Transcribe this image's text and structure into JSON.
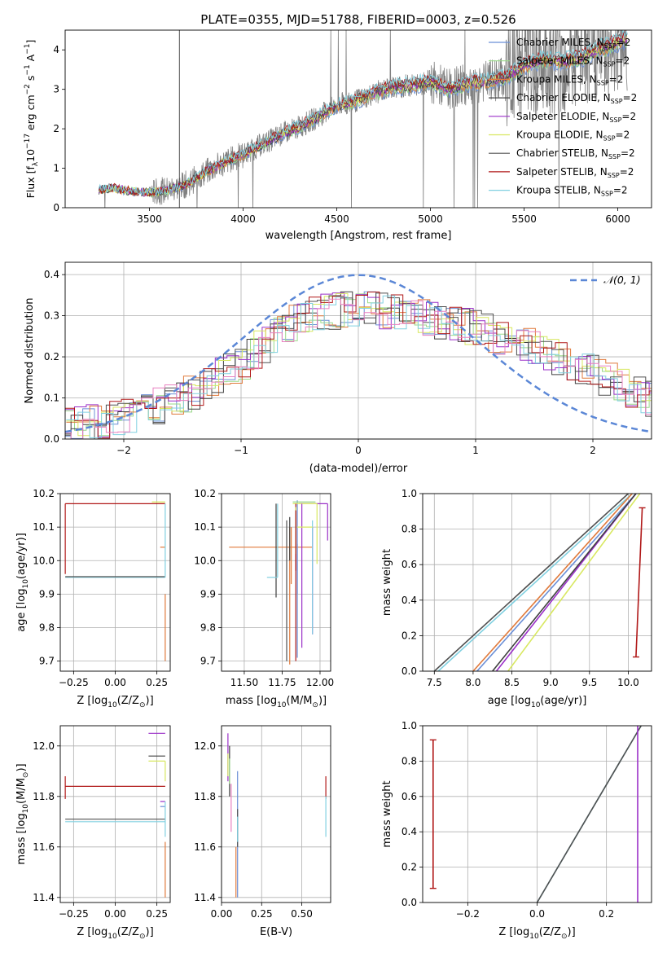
{
  "figure_title": "PLATE=0355, MJD=51788, FIBERID=0003, z=0.526",
  "model_names": [
    "Chabrier MILES",
    "Salpeter MILES",
    "Kroupa MILES",
    "Chabrier ELODIE",
    "Salpeter ELODIE",
    "Kroupa ELODIE",
    "Chabrier STELIB",
    "Salpeter STELIB",
    "Kroupa STELIB"
  ],
  "legend_suffix": ", N",
  "legend_sub": "SSP",
  "legend_tail": "=2",
  "colors": {
    "data_gray": "#808080",
    "models": [
      "#6b8fd6",
      "#9ad98a",
      "#e07a3c",
      "#404040",
      "#9b30c8",
      "#d8e860",
      "#505050",
      "#b01818",
      "#80d0e0"
    ],
    "normal_curve": "#5b87d6",
    "grid": "#b0b0b0"
  },
  "chart_data": [
    {
      "id": "spectrum",
      "type": "line",
      "title": "PLATE=0355, MJD=51788, FIBERID=0003, z=0.526",
      "xlabel": "wavelength [Angstrom, rest frame]",
      "ylabel_pre": "Flux [f",
      "ylabel_sub": "λ",
      "ylabel_post": "10",
      "ylabel_exp": "−17",
      "ylabel_tail": " erg cm",
      "ylabel_exp2": "−2",
      "ylabel_tail2": " s",
      "ylabel_exp3": "−1",
      "ylabel_tail3": " A",
      "ylabel_exp4": "−1",
      "ylabel_end": "]",
      "xlim": [
        3050,
        6180
      ],
      "ylim": [
        0,
        4.5
      ],
      "xticks": [
        3500,
        4000,
        4500,
        5000,
        5500,
        6000
      ],
      "yticks": [
        0,
        1,
        2,
        3,
        4
      ],
      "grid": false,
      "legend": "top-right",
      "continuum": {
        "x": [
          3230,
          3300,
          3400,
          3500,
          3600,
          3700,
          3800,
          3900,
          4000,
          4100,
          4200,
          4300,
          4400,
          4500,
          4600,
          4700,
          4800,
          4900,
          5000,
          5100,
          5200,
          5300,
          5400,
          5500,
          5600,
          5700,
          5800,
          5900,
          6000,
          6050
        ],
        "y": [
          0.45,
          0.5,
          0.42,
          0.38,
          0.45,
          0.6,
          0.9,
          1.15,
          1.35,
          1.6,
          1.85,
          2.05,
          2.3,
          2.6,
          2.7,
          2.9,
          3.05,
          3.1,
          3.2,
          3.0,
          3.15,
          3.2,
          3.3,
          3.6,
          3.75,
          3.7,
          3.8,
          4.0,
          4.2,
          4.3
        ]
      }
    },
    {
      "id": "residuals",
      "type": "line",
      "xlabel": "(data-model)/error",
      "ylabel": "Normed distribution",
      "xlim": [
        -2.5,
        2.5
      ],
      "ylim": [
        0,
        0.43
      ],
      "xticks": [
        -2,
        -1,
        0,
        1,
        2
      ],
      "yticks": [
        0.0,
        0.1,
        0.2,
        0.3,
        0.4
      ],
      "grid": true,
      "legend": "top-right",
      "normal_label": "𝒩(0, 1)",
      "envelope": {
        "x": [
          -2.5,
          -2.0,
          -1.5,
          -1.0,
          -0.5,
          0.0,
          0.5,
          1.0,
          1.5,
          2.0,
          2.5
        ],
        "y": [
          0.03,
          0.05,
          0.1,
          0.18,
          0.3,
          0.32,
          0.3,
          0.27,
          0.22,
          0.16,
          0.1
        ]
      }
    },
    {
      "id": "age-vs-Z",
      "type": "scatter",
      "xlabel_pre": "Z [log",
      "xlabel_sub": "10",
      "xlabel_post": "(Z/Z",
      "xlabel_sub2": "⊙",
      "xlabel_end": ")]",
      "ylabel_pre": "age  [log",
      "ylabel_sub": "10",
      "ylabel_post": "(age/yr)]",
      "xlim": [
        -0.33,
        0.33
      ],
      "ylim": [
        9.67,
        10.2
      ],
      "xticks": [
        -0.25,
        0.0,
        0.25
      ],
      "xticklabels": [
        "−0.25",
        "0.00",
        "0.25"
      ],
      "yticks": [
        9.7,
        9.8,
        9.9,
        10.0,
        10.1,
        10.2
      ],
      "grid": true,
      "segments": [
        {
          "model": 7,
          "x1": -0.3,
          "x2": 0.3,
          "y1": 10.17,
          "y2": 10.17
        },
        {
          "model": 7,
          "x1": -0.3,
          "x2": -0.3,
          "y1": 9.96,
          "y2": 10.17
        },
        {
          "model": 8,
          "x1": -0.3,
          "x2": 0.3,
          "y1": 9.95,
          "y2": 9.95
        },
        {
          "model": 6,
          "x1": -0.3,
          "x2": 0.3,
          "y1": 9.952,
          "y2": 9.952
        },
        {
          "model": 5,
          "x1": 0.22,
          "x2": 0.3,
          "y1": 10.175,
          "y2": 10.175
        },
        {
          "model": 2,
          "x1": 0.3,
          "x2": 0.3,
          "y1": 9.7,
          "y2": 9.9
        },
        {
          "model": 2,
          "x1": 0.27,
          "x2": 0.3,
          "y1": 10.04,
          "y2": 10.04
        },
        {
          "model": 8,
          "x1": 0.3,
          "x2": 0.3,
          "y1": 9.95,
          "y2": 10.17
        }
      ]
    },
    {
      "id": "age-vs-mass",
      "type": "scatter",
      "xlabel_pre": "mass [log",
      "xlabel_sub": "10",
      "xlabel_post": "(M/M",
      "xlabel_sub2": "⊙",
      "xlabel_end": ")]",
      "xlim": [
        11.35,
        12.07
      ],
      "ylim": [
        9.67,
        10.2
      ],
      "xticks": [
        11.5,
        11.75,
        12.0
      ],
      "xticklabels": [
        "11.50",
        "11.75",
        "12.00"
      ],
      "yticks": [
        9.7,
        9.8,
        9.9,
        10.0,
        10.1,
        10.2
      ],
      "grid": true,
      "segments": [
        {
          "model": 2,
          "x1": 11.4,
          "x2": 11.95,
          "y1": 10.04,
          "y2": 10.04
        },
        {
          "model": 2,
          "x1": 11.8,
          "x2": 11.8,
          "y1": 9.69,
          "y2": 10.1
        },
        {
          "model": 0,
          "x1": 11.85,
          "x2": 11.85,
          "y1": 9.71,
          "y2": 10.18
        },
        {
          "model": 3,
          "x1": 11.71,
          "x2": 11.71,
          "y1": 9.89,
          "y2": 10.17
        },
        {
          "model": 8,
          "x1": 11.65,
          "x2": 11.72,
          "y1": 9.95,
          "y2": 9.95
        },
        {
          "model": 8,
          "x1": 11.72,
          "x2": 11.72,
          "y1": 9.95,
          "y2": 10.17
        },
        {
          "model": 4,
          "x1": 11.86,
          "x2": 12.05,
          "y1": 10.17,
          "y2": 10.17
        },
        {
          "model": 4,
          "x1": 12.05,
          "x2": 12.05,
          "y1": 10.06,
          "y2": 10.17
        },
        {
          "model": 5,
          "x1": 11.82,
          "x2": 11.98,
          "y1": 10.17,
          "y2": 10.17
        },
        {
          "model": 5,
          "x1": 11.98,
          "x2": 11.98,
          "y1": 9.99,
          "y2": 10.17
        },
        {
          "model": 1,
          "x1": 11.82,
          "x2": 11.97,
          "y1": 10.175,
          "y2": 10.175
        },
        {
          "model": 6,
          "x1": 11.78,
          "x2": 11.78,
          "y1": 9.7,
          "y2": 10.12
        },
        {
          "model": 7,
          "x1": 11.84,
          "x2": 11.84,
          "y1": 9.7,
          "y2": 10.17
        },
        {
          "model": 4,
          "x1": 11.88,
          "x2": 11.88,
          "y1": 9.74,
          "y2": 10.17
        },
        {
          "model": 5,
          "x1": 11.84,
          "x2": 11.84,
          "y1": 10.02,
          "y2": 10.16
        },
        {
          "model": 0,
          "x1": 11.85,
          "x2": 11.85,
          "y1": 9.9,
          "y2": 10.05
        },
        {
          "model": 7,
          "x1": 11.84,
          "x2": 11.84,
          "y1": 9.97,
          "y2": 10.15
        },
        {
          "model": 2,
          "x1": 11.81,
          "x2": 11.81,
          "y1": 9.93,
          "y2": 10.1
        },
        {
          "model": 3,
          "x1": 11.8,
          "x2": 11.8,
          "y1": 10.0,
          "y2": 10.13
        },
        {
          "model": 4,
          "x1": 11.95,
          "x2": 11.95,
          "y1": 9.78,
          "y2": 10.1
        },
        {
          "model": 8,
          "x1": 11.95,
          "x2": 11.95,
          "y1": 9.78,
          "y2": 10.12
        },
        {
          "model": 5,
          "x1": 11.85,
          "x2": 11.95,
          "y1": 10.1,
          "y2": 10.1
        }
      ]
    },
    {
      "id": "mass-weight-vs-age",
      "type": "line",
      "xlabel_pre": "age  [log",
      "xlabel_sub": "10",
      "xlabel_post": "(age/yr)]",
      "ylabel": "mass weight",
      "xlim": [
        7.35,
        10.3
      ],
      "ylim": [
        0,
        1.0
      ],
      "xticks": [
        7.5,
        8.0,
        8.5,
        9.0,
        9.5,
        10.0
      ],
      "xticklabels": [
        "7.5",
        "8.0",
        "8.5",
        "9.0",
        "9.5",
        "10.0"
      ],
      "yticks": [
        0.0,
        0.2,
        0.4,
        0.6,
        0.8,
        1.0
      ],
      "grid": true,
      "series": [
        {
          "model": 6,
          "x": [
            7.5,
            10.0
          ],
          "y": [
            0.0,
            1.0
          ]
        },
        {
          "model": 8,
          "x": [
            7.55,
            10.05
          ],
          "y": [
            0.0,
            1.0
          ]
        },
        {
          "model": 2,
          "x": [
            8.0,
            10.05
          ],
          "y": [
            0.0,
            1.0
          ]
        },
        {
          "model": 0,
          "x": [
            8.05,
            10.1
          ],
          "y": [
            0.0,
            1.0
          ]
        },
        {
          "model": 4,
          "x": [
            8.3,
            10.1
          ],
          "y": [
            0.0,
            1.0
          ]
        },
        {
          "model": 5,
          "x": [
            8.45,
            10.15
          ],
          "y": [
            0.0,
            1.0
          ]
        },
        {
          "model": 3,
          "x": [
            8.25,
            10.1
          ],
          "y": [
            0.0,
            1.0
          ]
        },
        {
          "model": 7,
          "x": [
            10.1,
            10.18
          ],
          "y": [
            0.08,
            0.92
          ]
        }
      ]
    },
    {
      "id": "mass-vs-Z",
      "type": "scatter",
      "xlabel_pre": "Z [log",
      "xlabel_sub": "10",
      "xlabel_post": "(Z/Z",
      "xlabel_sub2": "⊙",
      "xlabel_end": ")]",
      "ylabel_pre": "mass [log",
      "ylabel_sub": "10",
      "ylabel_post": "(M/M",
      "ylabel_sub2": "⊙",
      "ylabel_end": ")]",
      "xlim": [
        -0.33,
        0.33
      ],
      "ylim": [
        11.38,
        12.08
      ],
      "xticks": [
        -0.25,
        0.0,
        0.25
      ],
      "xticklabels": [
        "−0.25",
        "0.00",
        "0.25"
      ],
      "yticks": [
        11.4,
        11.6,
        11.8,
        12.0
      ],
      "grid": true,
      "segments": [
        {
          "model": 7,
          "x1": -0.3,
          "x2": 0.3,
          "y1": 11.84,
          "y2": 11.84
        },
        {
          "model": 7,
          "x1": -0.3,
          "x2": -0.3,
          "y1": 11.79,
          "y2": 11.88
        },
        {
          "model": 6,
          "x1": -0.3,
          "x2": 0.3,
          "y1": 11.71,
          "y2": 11.71
        },
        {
          "model": 8,
          "x1": -0.3,
          "x2": 0.3,
          "y1": 11.7,
          "y2": 11.7
        },
        {
          "model": 4,
          "x1": 0.2,
          "x2": 0.3,
          "y1": 12.05,
          "y2": 12.05
        },
        {
          "model": 3,
          "x1": 0.2,
          "x2": 0.3,
          "y1": 11.96,
          "y2": 11.96
        },
        {
          "model": 5,
          "x1": 0.2,
          "x2": 0.3,
          "y1": 11.94,
          "y2": 11.94
        },
        {
          "model": 2,
          "x1": 0.3,
          "x2": 0.3,
          "y1": 11.4,
          "y2": 11.62
        },
        {
          "model": 0,
          "x1": 0.27,
          "x2": 0.3,
          "y1": 11.76,
          "y2": 11.76
        },
        {
          "model": 4,
          "x1": 0.27,
          "x2": 0.3,
          "y1": 11.78,
          "y2": 11.78
        },
        {
          "model": 8,
          "x1": 0.3,
          "x2": 0.3,
          "y1": 11.64,
          "y2": 11.78
        },
        {
          "model": 5,
          "x1": 0.3,
          "x2": 0.3,
          "y1": 11.86,
          "y2": 11.94
        }
      ]
    },
    {
      "id": "mass-vs-EBV",
      "type": "scatter",
      "xlabel": "E(B-V)",
      "xlim": [
        0.0,
        0.68
      ],
      "ylim": [
        11.38,
        12.08
      ],
      "xticks": [
        0.0,
        0.25,
        0.5
      ],
      "xticklabels": [
        "0.00",
        "0.25",
        "0.50"
      ],
      "yticks": [
        11.4,
        11.6,
        11.8,
        12.0
      ],
      "grid": true,
      "segments": [
        {
          "model": 4,
          "x1": 0.04,
          "x2": 0.04,
          "y1": 11.86,
          "y2": 12.05
        },
        {
          "model": 5,
          "x1": 0.04,
          "x2": 0.04,
          "y1": 11.88,
          "y2": 11.97
        },
        {
          "model": 3,
          "x1": 0.05,
          "x2": 0.05,
          "y1": 11.8,
          "y2": 12.0
        },
        {
          "model": 1,
          "x1": 0.05,
          "x2": 0.05,
          "y1": 11.85,
          "y2": 11.95
        },
        {
          "model": 9,
          "x1": 0.06,
          "x2": 0.06,
          "y1": 11.66,
          "y2": 11.85
        },
        {
          "model": 0,
          "x1": 0.1,
          "x2": 0.1,
          "y1": 11.4,
          "y2": 11.9
        },
        {
          "model": 2,
          "x1": 0.09,
          "x2": 0.09,
          "y1": 11.4,
          "y2": 11.6
        },
        {
          "model": 6,
          "x1": 0.1,
          "x2": 0.1,
          "y1": 11.6,
          "y2": 11.75
        },
        {
          "model": 8,
          "x1": 0.1,
          "x2": 0.1,
          "y1": 11.62,
          "y2": 11.72
        },
        {
          "model": 7,
          "x1": 0.65,
          "x2": 0.65,
          "y1": 11.79,
          "y2": 11.88
        },
        {
          "model": 8,
          "x1": 0.65,
          "x2": 0.65,
          "y1": 11.64,
          "y2": 11.8
        }
      ]
    },
    {
      "id": "mass-weight-vs-Z",
      "type": "line",
      "xlabel_pre": "Z [log",
      "xlabel_sub": "10",
      "xlabel_post": "(Z/Z",
      "xlabel_sub2": "⊙",
      "xlabel_end": ")]",
      "ylabel": "mass weight",
      "xlim": [
        -0.33,
        0.33
      ],
      "ylim": [
        0,
        1.0
      ],
      "xticks": [
        -0.2,
        0.0,
        0.2
      ],
      "xticklabels": [
        "−0.2",
        "0.0",
        "0.2"
      ],
      "yticks": [
        0.0,
        0.2,
        0.4,
        0.6,
        0.8,
        1.0
      ],
      "grid": true,
      "series": [
        {
          "model": 8,
          "x": [
            0.0,
            0.3
          ],
          "y": [
            0.0,
            1.0
          ]
        },
        {
          "model": 6,
          "x": [
            0.0,
            0.3
          ],
          "y": [
            0.0,
            1.0
          ]
        },
        {
          "model": 4,
          "x": [
            0.29,
            0.29
          ],
          "y": [
            0.0,
            1.0
          ]
        },
        {
          "model": 7,
          "x": [
            -0.3,
            -0.3
          ],
          "y": [
            0.08,
            0.92
          ]
        }
      ]
    }
  ]
}
